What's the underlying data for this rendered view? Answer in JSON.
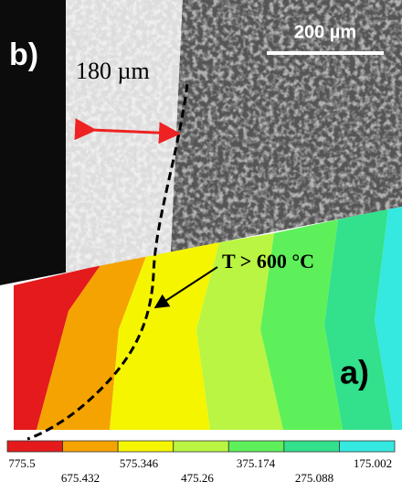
{
  "labels": {
    "panel_b": "b)",
    "scale_bar": "200 µm",
    "width": "180 µm",
    "temperature": "T > 600 °C",
    "panel_a": "a)"
  },
  "legend": {
    "labels": [
      "775.5",
      "675.432",
      "575.346",
      "475.26",
      "375.174",
      "275.088",
      "175.002"
    ]
  }
}
